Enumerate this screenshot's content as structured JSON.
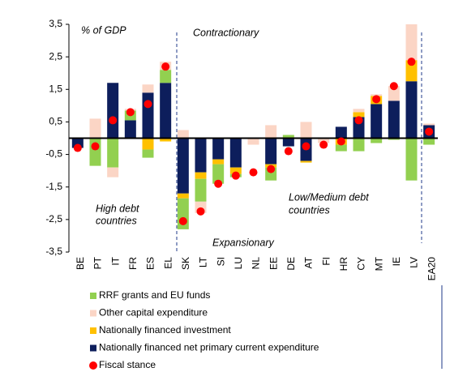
{
  "chart_data": {
    "type": "bar",
    "categories": [
      "BE",
      "PT",
      "IT",
      "FR",
      "ES",
      "EL",
      "SK",
      "LT",
      "SI",
      "LU",
      "NL",
      "EE",
      "DE",
      "AT",
      "FI",
      "HR",
      "CY",
      "MT",
      "IE",
      "LV",
      "EA20"
    ],
    "series": [
      {
        "name": "RRF grants and EU funds",
        "color": "#92d050",
        "values": [
          0,
          -0.85,
          -0.9,
          0.3,
          -0.25,
          0.4,
          -0.95,
          -0.7,
          -0.6,
          -0.1,
          0,
          -0.4,
          0.1,
          0,
          0,
          -0.2,
          -0.4,
          -0.15,
          -0.05,
          -1.3,
          -0.2
        ]
      },
      {
        "name": "Other capital expenditure",
        "color": "#fbd5c5",
        "values": [
          0,
          0.6,
          -0.3,
          0.05,
          0.25,
          0.25,
          0.25,
          -0.35,
          0,
          0,
          -0.2,
          0.4,
          0,
          0.5,
          -0.15,
          0,
          0.1,
          0.05,
          0.45,
          1.1,
          0.05
        ]
      },
      {
        "name": "Nationally financed investment",
        "color": "#ffc000",
        "values": [
          0,
          0,
          0,
          0,
          -0.35,
          -0.1,
          -0.15,
          -0.2,
          -0.15,
          -0.2,
          0,
          -0.1,
          0,
          -0.05,
          0,
          -0.2,
          0.15,
          0.25,
          0,
          0.65,
          0
        ]
      },
      {
        "name": "Nationally financed net primary current expenditure",
        "color": "#0d1e5c",
        "values": [
          -0.3,
          0,
          1.7,
          0.55,
          1.4,
          1.7,
          -1.7,
          -1.05,
          -0.65,
          -0.9,
          0,
          -0.8,
          -0.25,
          -0.7,
          0,
          0.35,
          0.65,
          1.05,
          1.15,
          1.75,
          0.4
        ]
      },
      {
        "name": "Fiscal stance",
        "color": "#ff0000",
        "values": [
          -0.3,
          -0.25,
          0.55,
          0.8,
          1.05,
          2.2,
          -2.55,
          -2.25,
          -1.4,
          -1.15,
          -1.05,
          -0.95,
          -0.4,
          -0.25,
          -0.2,
          -0.1,
          0.55,
          1.2,
          1.6,
          2.35,
          0.2
        ]
      }
    ],
    "ylim": [
      -3.5,
      3.5
    ],
    "yticks": [
      {
        "value": -3.5,
        "label": "-3,5"
      },
      {
        "value": -2.5,
        "label": "-2,5"
      },
      {
        "value": -1.5,
        "label": "-1,5"
      },
      {
        "value": -0.5,
        "label": "-0,5"
      },
      {
        "value": 0.5,
        "label": "0,5"
      },
      {
        "value": 1.5,
        "label": "1,5"
      },
      {
        "value": 2.5,
        "label": "2,5"
      },
      {
        "value": 3.5,
        "label": "3,5"
      }
    ],
    "annotations": {
      "unit": "% of GDP",
      "top": "Contractionary",
      "bottom": "Expansionary",
      "left": [
        "High debt",
        "countries"
      ],
      "right": [
        "Low/Medium debt",
        "countries"
      ]
    }
  }
}
